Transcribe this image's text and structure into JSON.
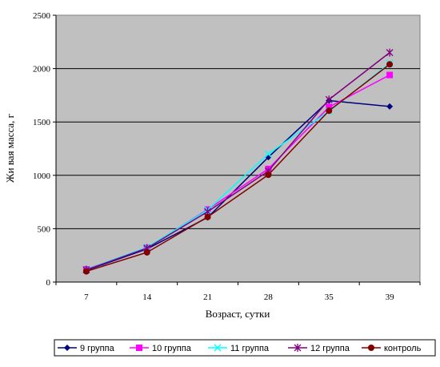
{
  "chart_data": {
    "type": "line",
    "title": "",
    "xlabel": "Возраст, сутки",
    "ylabel": "Жи вая масса, г",
    "categories": [
      "7",
      "14",
      "21",
      "28",
      "35",
      "39"
    ],
    "ylim": [
      0,
      2500
    ],
    "yticks": [
      0,
      500,
      1000,
      1500,
      2000,
      2500
    ],
    "grid": "horizontal",
    "plot_background": "#c0c0c0",
    "legend_position": "bottom",
    "series": [
      {
        "name": "9 группа",
        "color": "#000080",
        "marker": "diamond",
        "values": [
          110,
          310,
          605,
          1170,
          1700,
          1645
        ]
      },
      {
        "name": "10 группа",
        "color": "#ff00ff",
        "marker": "square",
        "values": [
          120,
          320,
          680,
          1060,
          1640,
          1940
        ]
      },
      {
        "name": "11 группа",
        "color": "#00ffff",
        "marker": "x",
        "values": [
          118,
          325,
          675,
          1200,
          1600,
          2050
        ]
      },
      {
        "name": "12 группа",
        "color": "#800080",
        "marker": "star",
        "values": [
          115,
          318,
          660,
          1040,
          1710,
          2150
        ]
      },
      {
        "name": "контроль",
        "color": "#800000",
        "marker": "circle",
        "values": [
          100,
          278,
          610,
          1005,
          1605,
          2040
        ]
      }
    ]
  }
}
